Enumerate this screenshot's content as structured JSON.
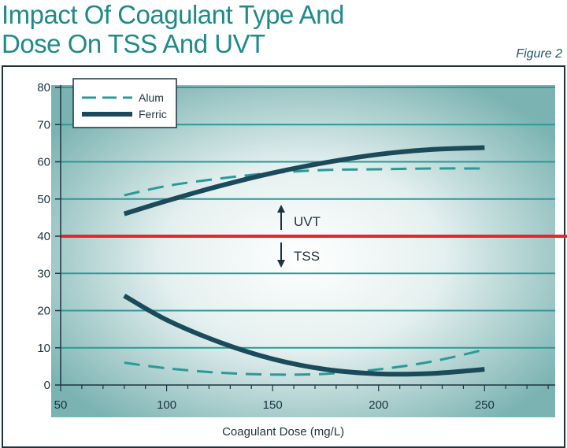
{
  "title_line1": "Impact Of Coagulant Type And",
  "title_line2": "Dose On TSS And UVT",
  "figure_label": "Figure 2",
  "colors": {
    "title": "#1f8a8a",
    "alum": "#2a9a97",
    "ferric": "#1b4a5a",
    "reference": "#e3272b",
    "grid": "#2a9a97",
    "frame": "#1d3340",
    "glow_center": "#ffffff",
    "glow_edge": "#7bb3b2"
  },
  "chart_data": {
    "type": "line",
    "title": "Impact Of Coagulant Type And Dose On TSS And UVT",
    "xlabel": "Coagulant Dose (mg/L)",
    "ylabel": "",
    "xlim": [
      50,
      290
    ],
    "ylim": [
      0,
      80
    ],
    "xticks": [
      50,
      100,
      150,
      200,
      250
    ],
    "yticks": [
      0,
      10,
      20,
      30,
      40,
      50,
      60,
      70,
      80
    ],
    "grid": true,
    "legend_position": "top-left",
    "legend": [
      "Alum",
      "Ferric"
    ],
    "reference_line": 40,
    "annotations": [
      "UVT",
      "TSS"
    ],
    "series": [
      {
        "name": "Alum",
        "group": "UVT",
        "style": "dashed",
        "x": [
          80,
          100,
          125,
          150,
          175,
          200,
          225,
          250
        ],
        "y": [
          51,
          53.5,
          55.5,
          57,
          57.8,
          58,
          58.2,
          58.2
        ]
      },
      {
        "name": "Ferric",
        "group": "UVT",
        "style": "solid",
        "x": [
          80,
          100,
          125,
          150,
          175,
          200,
          225,
          250
        ],
        "y": [
          46,
          49.5,
          53.5,
          57,
          59.8,
          62,
          63.3,
          63.8
        ]
      },
      {
        "name": "Alum",
        "group": "TSS",
        "style": "dashed",
        "x": [
          80,
          100,
          125,
          150,
          175,
          200,
          225,
          250
        ],
        "y": [
          6,
          4.5,
          3.3,
          2.8,
          3.0,
          4.2,
          6.3,
          9.5
        ]
      },
      {
        "name": "Ferric",
        "group": "TSS",
        "style": "solid",
        "x": [
          80,
          100,
          125,
          150,
          175,
          200,
          225,
          250
        ],
        "y": [
          24,
          17.5,
          11.5,
          7,
          4.2,
          3,
          3.1,
          4.2
        ]
      }
    ]
  }
}
